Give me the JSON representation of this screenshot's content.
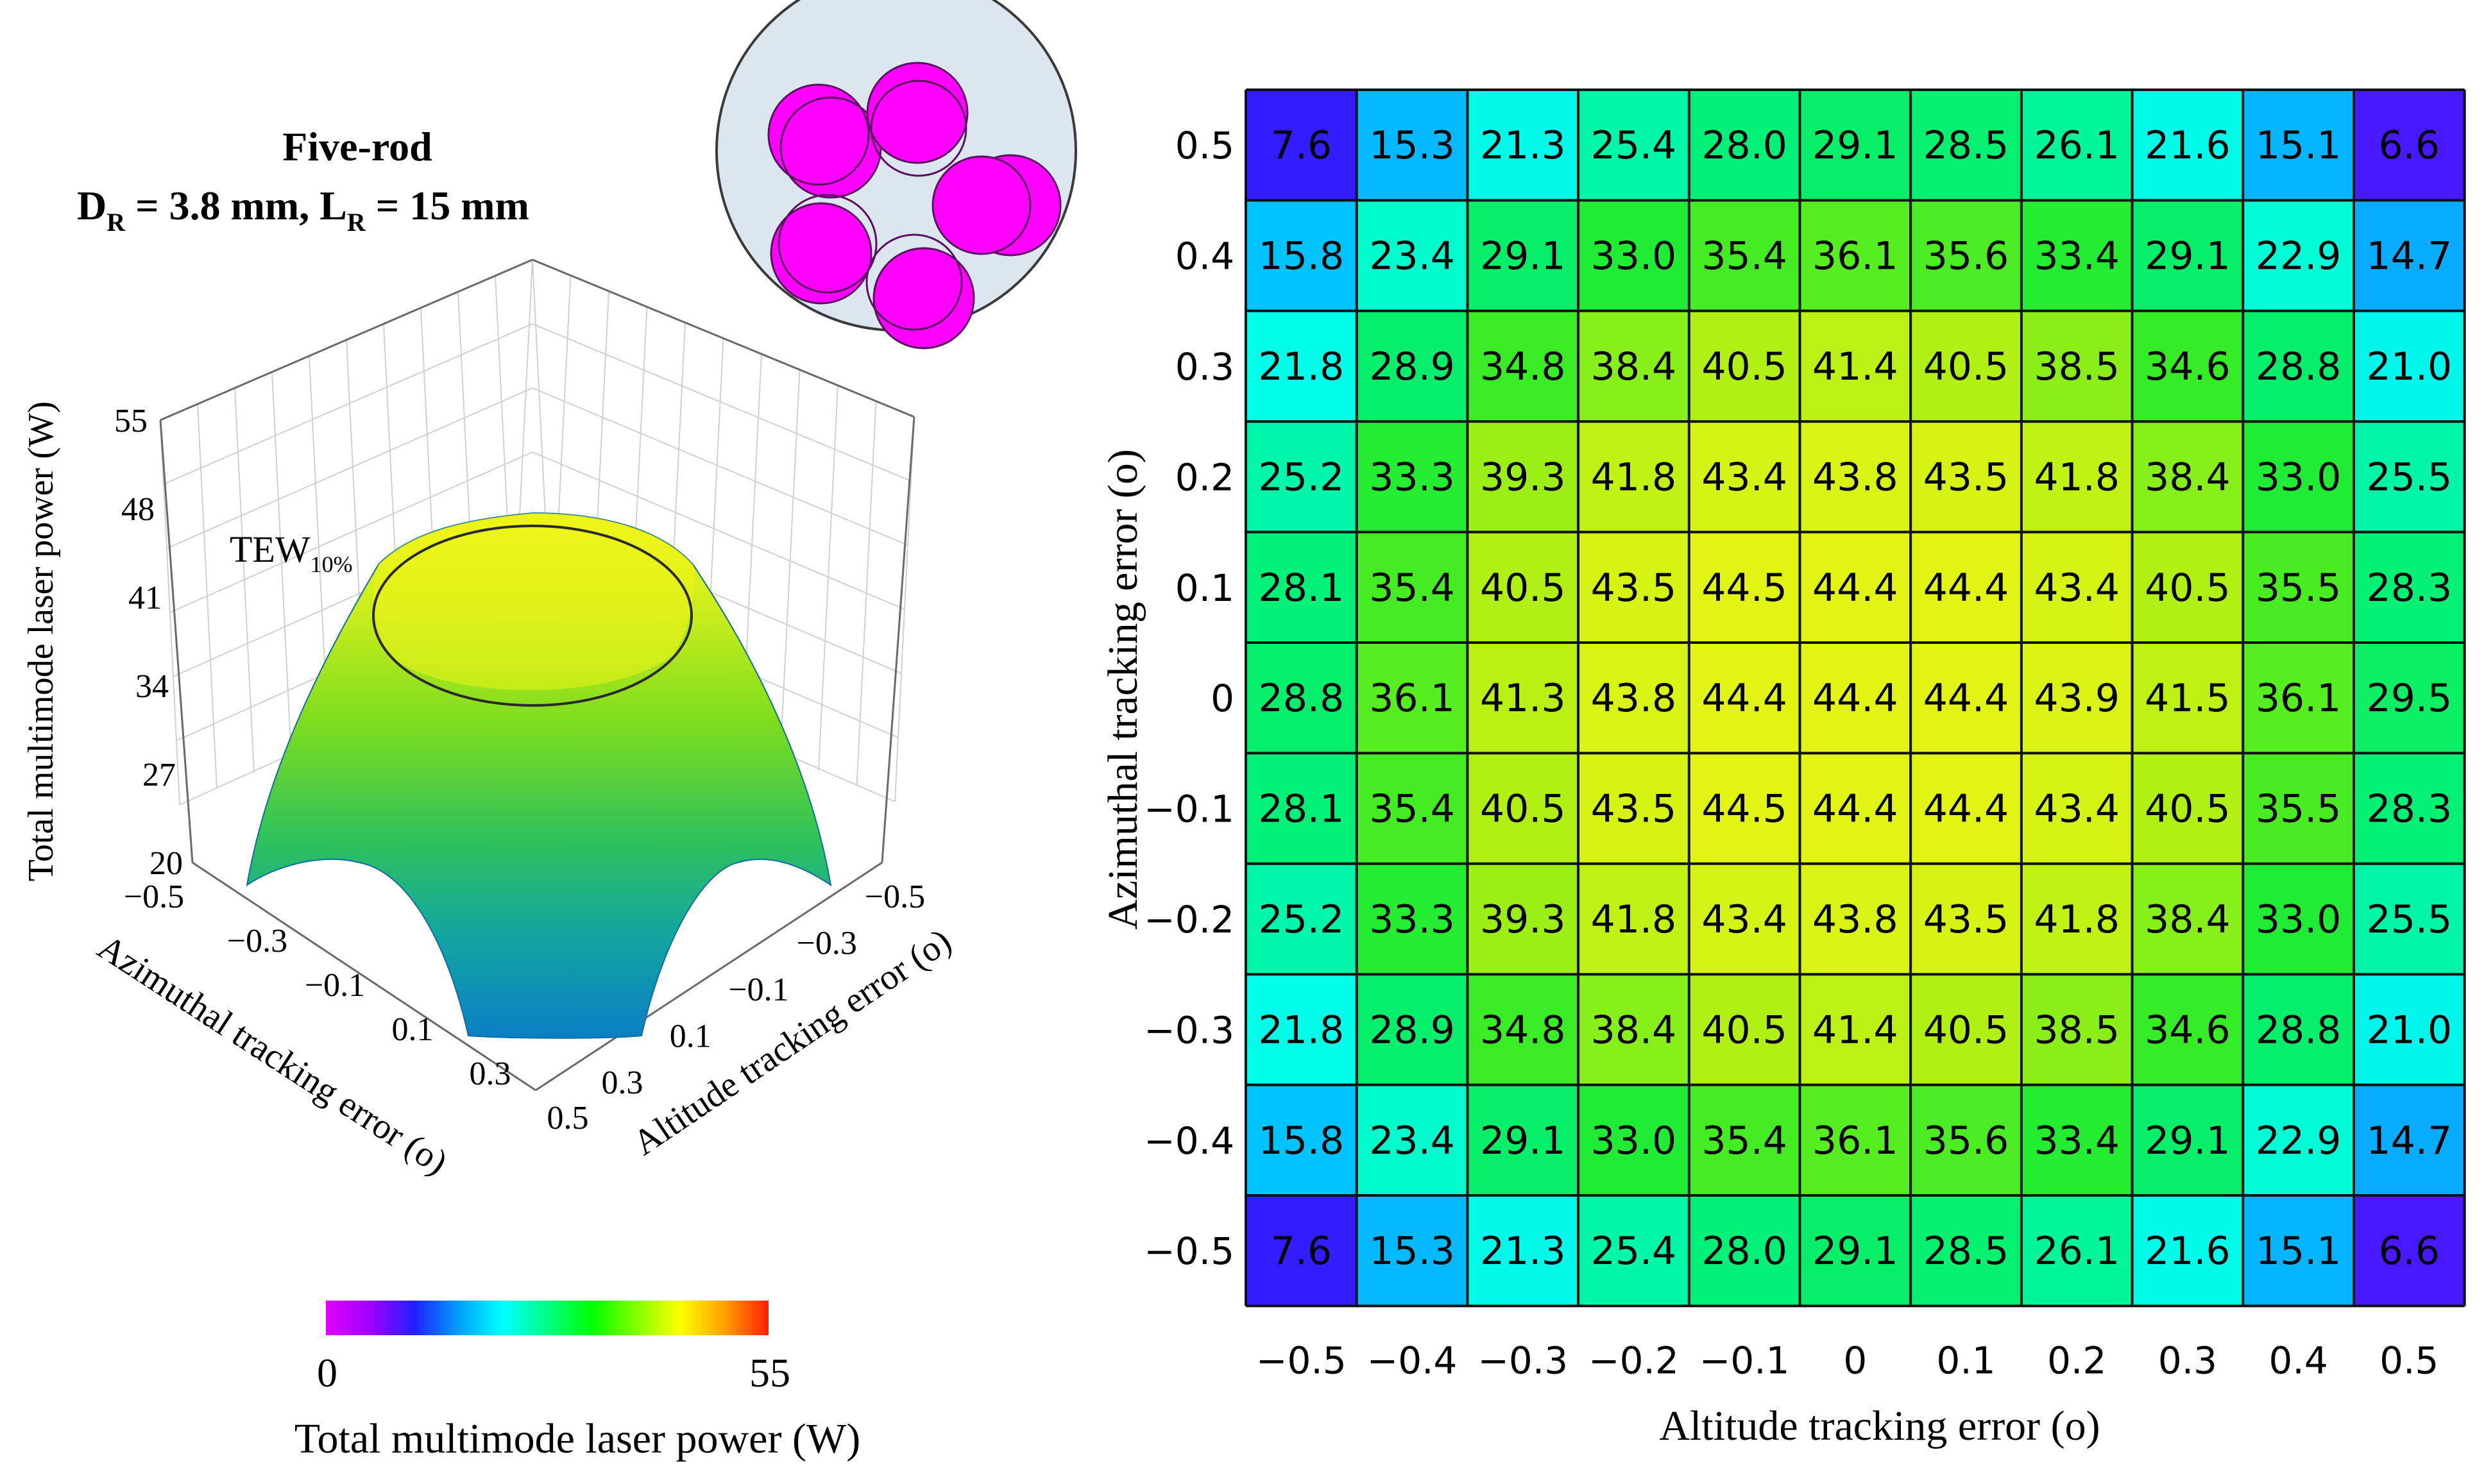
{
  "left_panel": {
    "title_line1": "Five-rod",
    "title_d": "D",
    "title_d_sub": "R",
    "title_d_value": " = 3.8 mm,  L",
    "title_l_sub": "R",
    "title_l_value": " = 15 mm",
    "tew_label": "TEW",
    "tew_sub": "10%",
    "inset": {
      "name": "five-rod cross-section",
      "housing_color": "#dbe6ee",
      "rod_color": "#ff00ff"
    }
  },
  "colorbar": {
    "min_label": "0",
    "max_label": "55",
    "title": "Total multimode laser power (W)",
    "colors": [
      "#e000ff",
      "#a000ff",
      "#2020ff",
      "#00a0ff",
      "#00ffff",
      "#00ff80",
      "#00ff00",
      "#80ff00",
      "#ffff00",
      "#ffa000",
      "#ff2000"
    ]
  },
  "colors": {
    "grid_line": "#000000",
    "surface_edge": "#10a0c0",
    "surface_top": "#eef418"
  },
  "chart_data": [
    {
      "type": "surface3d",
      "zlabel": "Total multimode laser power (W)",
      "xlabel": "Azimuthal tracking error (o)",
      "ylabel": "Altitude tracking error (o)",
      "z_ticks": [
        "20",
        "27",
        "34",
        "41",
        "48",
        "55"
      ],
      "zlim": [
        20,
        55
      ],
      "x_ticks": [
        "−0.5",
        "−0.3",
        "−0.1",
        "0.1",
        "0.3",
        "0.5"
      ],
      "y_ticks": [
        "−0.5",
        "−0.3",
        "−0.1",
        "0.1",
        "0.3"
      ],
      "peak_value": 44.5,
      "annotation": "TEW10% contour"
    },
    {
      "type": "heatmap",
      "xlabel": "Altitude tracking error (o)",
      "ylabel": "Azimuthal tracking error (o)",
      "x": [
        "−0.5",
        "−0.4",
        "−0.3",
        "−0.2",
        "−0.1",
        "0",
        "0.1",
        "0.2",
        "0.3",
        "0.4",
        "0.5"
      ],
      "y": [
        "0.5",
        "0.4",
        "0.3",
        "0.2",
        "0.1",
        "0",
        "−0.1",
        "−0.2",
        "−0.3",
        "−0.4",
        "−0.5"
      ],
      "values": [
        [
          "7.6",
          "15.3",
          "21.3",
          "25.4",
          "28.0",
          "29.1",
          "28.5",
          "26.1",
          "21.6",
          "15.1",
          "6.6"
        ],
        [
          "15.8",
          "23.4",
          "29.1",
          "33.0",
          "35.4",
          "36.1",
          "35.6",
          "33.4",
          "29.1",
          "22.9",
          "14.7"
        ],
        [
          "21.8",
          "28.9",
          "34.8",
          "38.4",
          "40.5",
          "41.4",
          "40.5",
          "38.5",
          "34.6",
          "28.8",
          "21.0"
        ],
        [
          "25.2",
          "33.3",
          "39.3",
          "41.8",
          "43.4",
          "43.8",
          "43.5",
          "41.8",
          "38.4",
          "33.0",
          "25.5"
        ],
        [
          "28.1",
          "35.4",
          "40.5",
          "43.5",
          "44.5",
          "44.4",
          "44.4",
          "43.4",
          "40.5",
          "35.5",
          "28.3"
        ],
        [
          "28.8",
          "36.1",
          "41.3",
          "43.8",
          "44.4",
          "44.4",
          "44.4",
          "43.9",
          "41.5",
          "36.1",
          "29.5"
        ],
        [
          "28.1",
          "35.4",
          "40.5",
          "43.5",
          "44.5",
          "44.4",
          "44.4",
          "43.4",
          "40.5",
          "35.5",
          "28.3"
        ],
        [
          "25.2",
          "33.3",
          "39.3",
          "41.8",
          "43.4",
          "43.8",
          "43.5",
          "41.8",
          "38.4",
          "33.0",
          "25.5"
        ],
        [
          "21.8",
          "28.9",
          "34.8",
          "38.4",
          "40.5",
          "41.4",
          "40.5",
          "38.5",
          "34.6",
          "28.8",
          "21.0"
        ],
        [
          "15.8",
          "23.4",
          "29.1",
          "33.0",
          "35.4",
          "36.1",
          "35.6",
          "33.4",
          "29.1",
          "22.9",
          "14.7"
        ],
        [
          "7.6",
          "15.3",
          "21.3",
          "25.4",
          "28.0",
          "29.1",
          "28.5",
          "26.1",
          "21.6",
          "15.1",
          "6.6"
        ]
      ],
      "color_range": [
        0,
        55
      ]
    }
  ]
}
